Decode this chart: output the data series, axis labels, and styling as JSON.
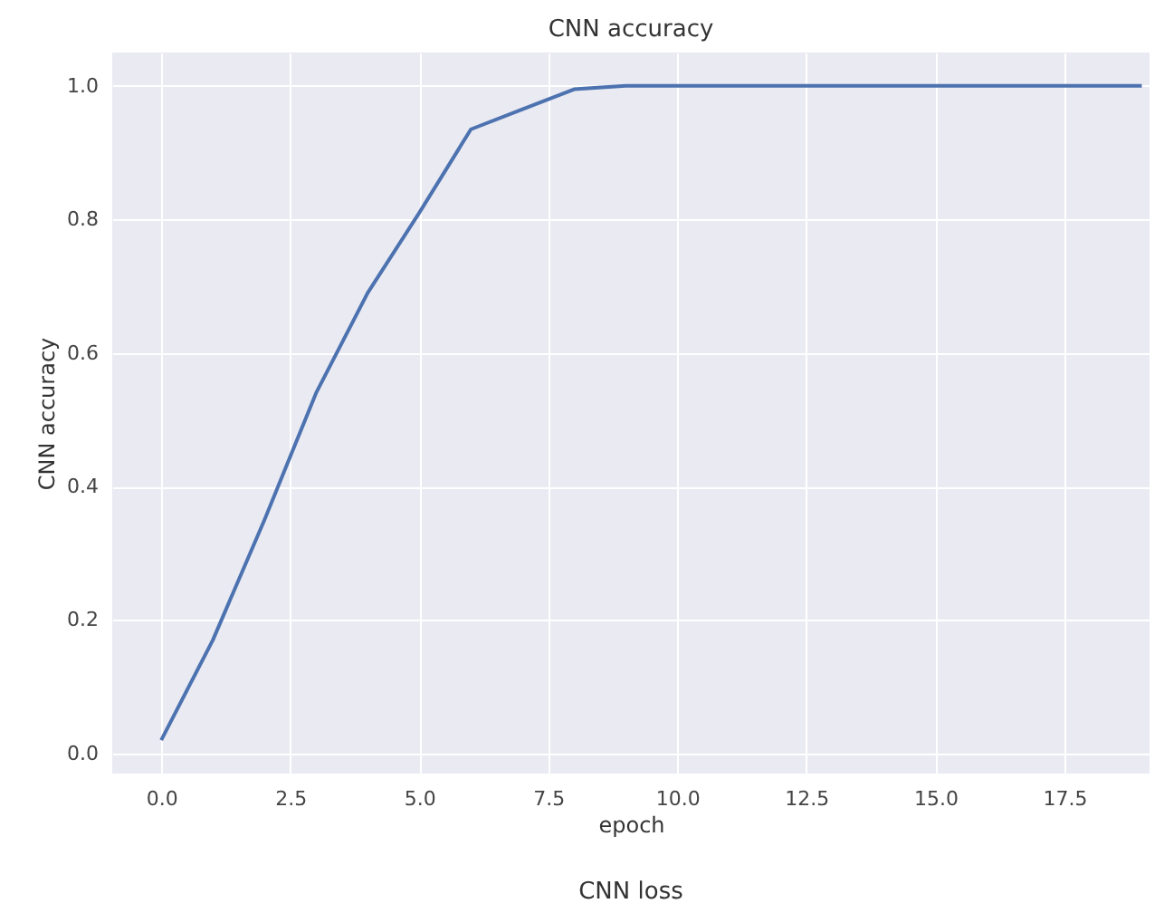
{
  "chart_data": {
    "type": "line",
    "title": "CNN accuracy",
    "xlabel": "epoch",
    "ylabel": "CNN accuracy",
    "x": [
      0,
      1,
      2,
      3,
      4,
      5,
      6,
      7,
      8,
      9,
      10,
      11,
      12,
      13,
      14,
      15,
      16,
      17,
      18,
      19
    ],
    "series": [
      {
        "color": "#4c72b0",
        "values": [
          0.02,
          0.17,
          0.35,
          0.54,
          0.69,
          0.81,
          0.935,
          0.965,
          0.995,
          1.0,
          1.0,
          1.0,
          1.0,
          1.0,
          1.0,
          1.0,
          1.0,
          1.0,
          1.0,
          1.0
        ]
      }
    ],
    "xlim": [
      -0.95,
      19.15
    ],
    "ylim": [
      -0.03,
      1.05
    ],
    "xticks": [
      {
        "value": 0,
        "label": "0.0"
      },
      {
        "value": 2.5,
        "label": "2.5"
      },
      {
        "value": 5,
        "label": "5.0"
      },
      {
        "value": 7.5,
        "label": "7.5"
      },
      {
        "value": 10,
        "label": "10.0"
      },
      {
        "value": 12.5,
        "label": "12.5"
      },
      {
        "value": 15,
        "label": "15.0"
      },
      {
        "value": 17.5,
        "label": "17.5"
      }
    ],
    "yticks": [
      {
        "value": 0,
        "label": "0.0"
      },
      {
        "value": 0.2,
        "label": "0.2"
      },
      {
        "value": 0.4,
        "label": "0.4"
      },
      {
        "value": 0.6,
        "label": "0.6"
      },
      {
        "value": 0.8,
        "label": "0.8"
      },
      {
        "value": 1.0,
        "label": "1.0"
      }
    ],
    "grid": true,
    "marker": "none",
    "line_style": "solid",
    "annotations": [
      "CNN loss"
    ]
  }
}
